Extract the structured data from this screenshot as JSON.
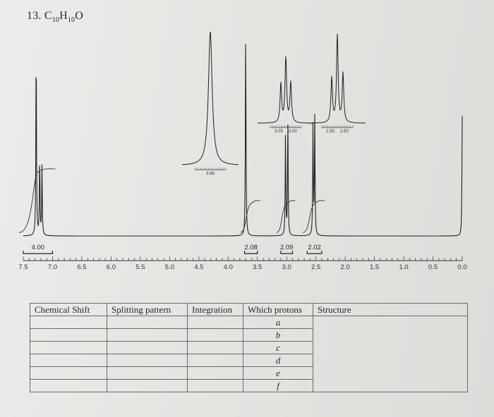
{
  "problem": {
    "label": "13.",
    "formula": {
      "c": "C",
      "c_n": "10",
      "h": "H",
      "h_n": "10",
      "o": "O"
    }
  },
  "chart_data": {
    "type": "line",
    "xlabel": "",
    "ylabel": "",
    "xlim": [
      7.5,
      0.0
    ],
    "x_axis_reversed": true,
    "x_ticks": [
      "7.5",
      "7.0",
      "6.5",
      "6.0",
      "5.5",
      "5.0",
      "4.5",
      "4.0",
      "3.5",
      "3.0",
      "2.5",
      "2.0",
      "1.5",
      "1.0",
      "0.5",
      "0.0"
    ],
    "peaks": [
      {
        "shift": 7.28,
        "height": 0.93,
        "note": "aromatic multiplet"
      },
      {
        "shift": 7.22,
        "height": 0.38
      },
      {
        "shift": 7.18,
        "height": 0.33
      },
      {
        "shift": 3.7,
        "height": 0.99,
        "note": "singlet"
      },
      {
        "shift": 3.02,
        "height": 0.47
      },
      {
        "shift": 2.98,
        "height": 0.56
      },
      {
        "shift": 2.55,
        "height": 0.52
      },
      {
        "shift": 2.52,
        "height": 0.56
      },
      {
        "shift": 0.0,
        "height": 0.57,
        "note": "TMS"
      }
    ],
    "integrations": [
      {
        "value": "4.00",
        "from": 7.5,
        "to": 7.0
      },
      {
        "value": "2.08",
        "from": 3.72,
        "to": 3.5
      },
      {
        "value": "2.09",
        "from": 3.1,
        "to": 2.9
      },
      {
        "value": "2.02",
        "from": 2.65,
        "to": 2.4
      }
    ],
    "insets": [
      {
        "label": "3.66",
        "center_shift": 3.7,
        "pattern": "singlet"
      },
      {
        "labels": [
          "3.05",
          "3.00"
        ],
        "center_shift": 3.0,
        "pattern": "triplet"
      },
      {
        "labels": [
          "2.55",
          "2.50"
        ],
        "center_shift": 2.53,
        "pattern": "triplet"
      }
    ]
  },
  "table": {
    "headers": [
      "Chemical Shift",
      "Splitting pattern",
      "Integration",
      "Which protons",
      "Structure"
    ],
    "rows": [
      {
        "proton": "a"
      },
      {
        "proton": "b"
      },
      {
        "proton": "c"
      },
      {
        "proton": "d"
      },
      {
        "proton": "e"
      },
      {
        "proton": "f"
      }
    ]
  }
}
